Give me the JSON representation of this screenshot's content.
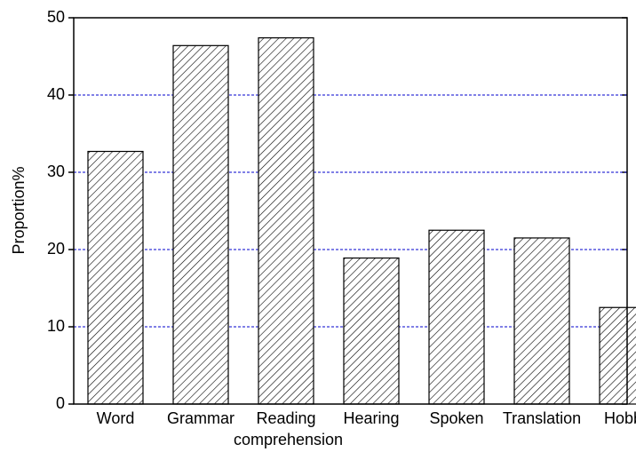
{
  "chart_data": {
    "type": "bar",
    "categories": [
      "Word",
      "Grammar",
      "Reading comprehension",
      "Hearing",
      "Spoken",
      "Translation",
      "Hobby"
    ],
    "values": [
      32.7,
      46.4,
      47.4,
      18.9,
      22.5,
      21.5,
      12.5
    ],
    "color": "#000000",
    "y_label": "Proportion%",
    "ylim": [
      0,
      50
    ],
    "yticks": [
      0,
      10,
      20,
      30,
      40,
      50
    ],
    "grid": true,
    "grid_color": "#0000cc"
  }
}
